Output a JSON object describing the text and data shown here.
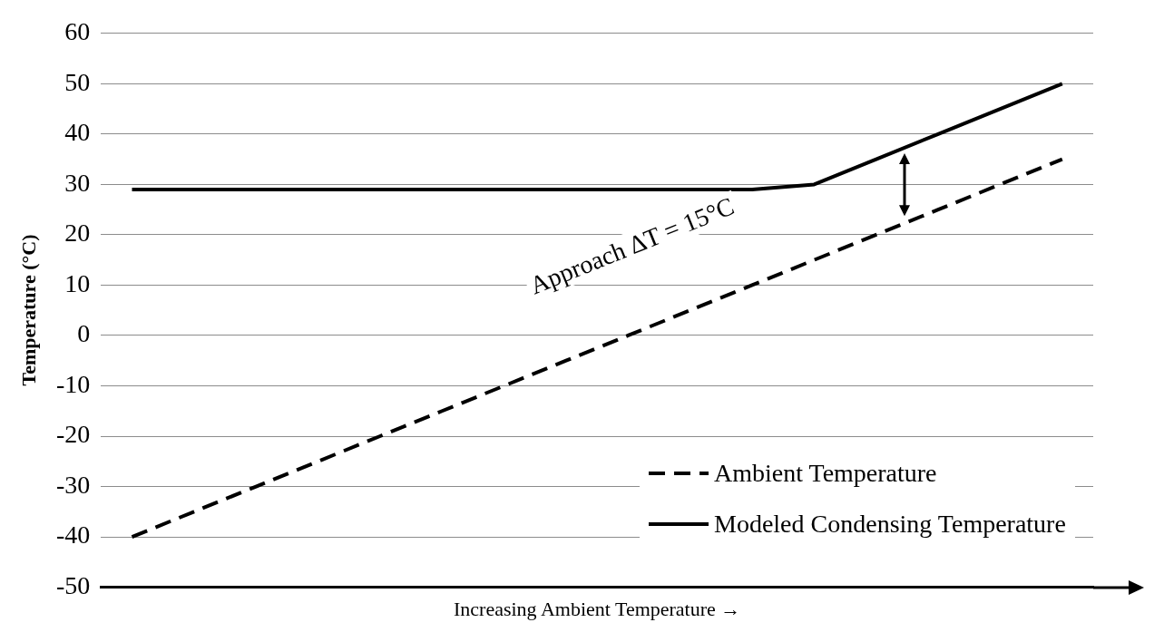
{
  "chart_data": {
    "type": "line",
    "ylabel": "Temperature (°C)",
    "xlabel": "Increasing Ambient Temperature →",
    "categories": [
      null,
      null,
      null,
      null,
      null,
      null,
      null,
      null,
      null,
      null,
      null,
      null,
      null,
      null,
      null,
      null
    ],
    "series": [
      {
        "name": "Ambient Temperature",
        "color": "#000000",
        "line_style": "dashed",
        "values": [
          -40,
          -35,
          -30,
          -25,
          -20,
          -15,
          -10,
          -5,
          0,
          5,
          10,
          15,
          20,
          25,
          30,
          35
        ]
      },
      {
        "name": "Modeled Condensing Temperature",
        "color": "#000000",
        "line_style": "solid",
        "values": [
          29,
          29,
          29,
          29,
          29,
          29,
          29,
          29,
          29,
          29,
          29,
          30,
          35,
          40,
          45,
          50
        ]
      }
    ],
    "ylim": [
      -50,
      60
    ],
    "yticks": [
      -50,
      -40,
      -30,
      -20,
      -10,
      0,
      10,
      20,
      30,
      40,
      50,
      60
    ],
    "grid": "y",
    "legend": "bottom right",
    "marker": "none",
    "tick_labels": "y",
    "annotations": [
      "Approach  ΔT = 15°C"
    ]
  }
}
